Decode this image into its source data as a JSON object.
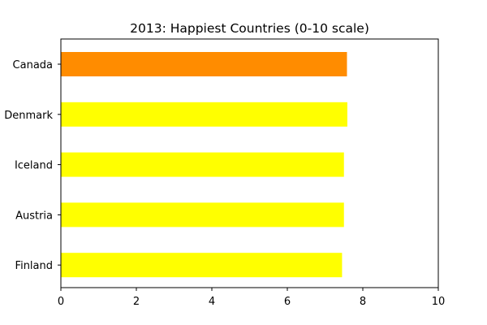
{
  "chart_data": {
    "type": "bar",
    "orientation": "horizontal",
    "title": "2013: Happiest Countries (0-10 scale)",
    "xlabel": "",
    "ylabel": "",
    "categories": [
      "Canada",
      "Denmark",
      "Iceland",
      "Austria",
      "Finland"
    ],
    "values": [
      7.58,
      7.59,
      7.5,
      7.5,
      7.45
    ],
    "bar_colors": [
      "#ff8c00",
      "#ffff00",
      "#ffff00",
      "#ffff00",
      "#ffff00"
    ],
    "xlim": [
      0,
      10
    ],
    "xticks": [
      "0",
      "2",
      "4",
      "6",
      "8",
      "10"
    ],
    "grid": false,
    "legend": "none"
  }
}
